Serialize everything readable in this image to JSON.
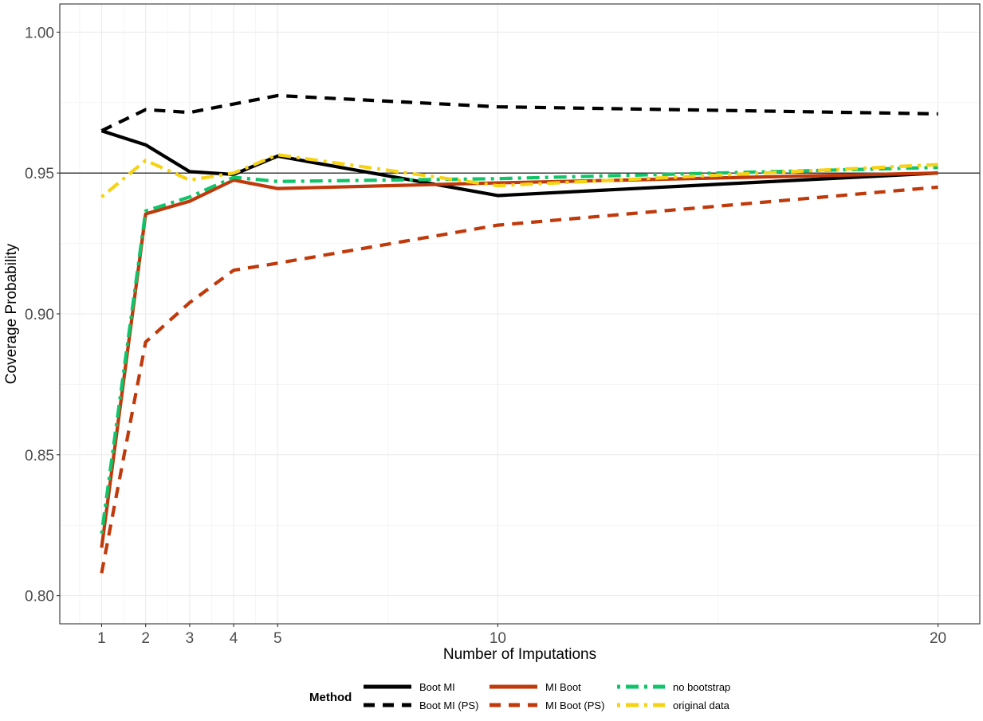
{
  "chart_data": {
    "type": "line",
    "xlabel": "Number of Imputations",
    "ylabel": "Coverage Probability",
    "xlim": [
      0.05,
      20.95
    ],
    "ylim": [
      0.79,
      1.01
    ],
    "x_ticks": [
      1,
      2,
      3,
      4,
      5,
      10,
      20
    ],
    "x_tick_labels": [
      "1",
      "2",
      "3",
      "4",
      "5",
      "10",
      "20"
    ],
    "y_ticks": [
      0.8,
      0.85,
      0.9,
      0.95,
      1.0
    ],
    "y_tick_labels": [
      "0.80",
      "0.85",
      "0.90",
      "0.95",
      "1.00"
    ],
    "reference_line": 0.95,
    "grid": true,
    "x": [
      1,
      2,
      3,
      4,
      5,
      10,
      20
    ],
    "legend": {
      "title": "Method",
      "position": "bottom"
    },
    "series": [
      {
        "name": "Boot MI",
        "color": "#000000",
        "dash": "solid",
        "values": [
          0.965,
          0.96,
          0.9505,
          0.9495,
          0.956,
          0.942,
          0.95
        ]
      },
      {
        "name": "Boot MI (PS)",
        "color": "#000000",
        "dash": "dashed",
        "values": [
          0.965,
          0.9725,
          0.9715,
          0.9745,
          0.9775,
          0.9735,
          0.971
        ]
      },
      {
        "name": "MI Boot",
        "color": "#c0390b",
        "dash": "solid",
        "values": [
          0.817,
          0.9355,
          0.94,
          0.9475,
          0.9445,
          0.9465,
          0.95
        ]
      },
      {
        "name": "MI Boot (PS)",
        "color": "#c0390b",
        "dash": "dashed",
        "values": [
          0.808,
          0.89,
          0.904,
          0.9155,
          0.918,
          0.9315,
          0.945
        ]
      },
      {
        "name": "no bootstrap",
        "color": "#10c46a",
        "dash": "dotdash",
        "values": [
          0.822,
          0.9365,
          0.9415,
          0.9485,
          0.947,
          0.948,
          0.952
        ]
      },
      {
        "name": "original data",
        "color": "#f5d314",
        "dash": "dotdash",
        "values": [
          0.9415,
          0.9545,
          0.9475,
          0.95,
          0.9565,
          0.9455,
          0.953
        ]
      }
    ]
  }
}
